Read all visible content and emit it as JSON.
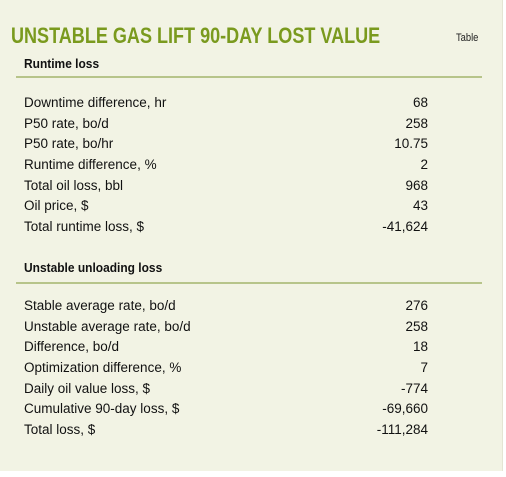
{
  "table": {
    "title": "UNSTABLE GAS LIFT 90-DAY LOST VALUE",
    "tag": "Table",
    "sections": [
      {
        "heading": "Runtime loss",
        "rows": [
          {
            "label": "Downtime difference, hr",
            "value": "68"
          },
          {
            "label": "P50 rate, bo/d",
            "value": "258"
          },
          {
            "label": "P50 rate, bo/hr",
            "value": "10.75"
          },
          {
            "label": "Runtime difference, %",
            "value": "2"
          },
          {
            "label": "Total oil loss, bbl",
            "value": "968"
          },
          {
            "label": "Oil price, $",
            "value": "43"
          },
          {
            "label": "Total runtime loss, $",
            "value": "-41,624"
          }
        ]
      },
      {
        "heading": "Unstable unloading loss",
        "rows": [
          {
            "label": "Stable average rate, bo/d",
            "value": "276"
          },
          {
            "label": "Unstable average rate, bo/d",
            "value": "258"
          },
          {
            "label": "Difference, bo/d",
            "value": "18"
          },
          {
            "label": "Optimization difference, %",
            "value": "7"
          },
          {
            "label": "Daily oil value loss, $",
            "value": "-774"
          },
          {
            "label": "Cumulative 90-day loss, $",
            "value": "-69,660"
          },
          {
            "label": "Total loss, $",
            "value": "-111,284"
          }
        ]
      }
    ]
  }
}
